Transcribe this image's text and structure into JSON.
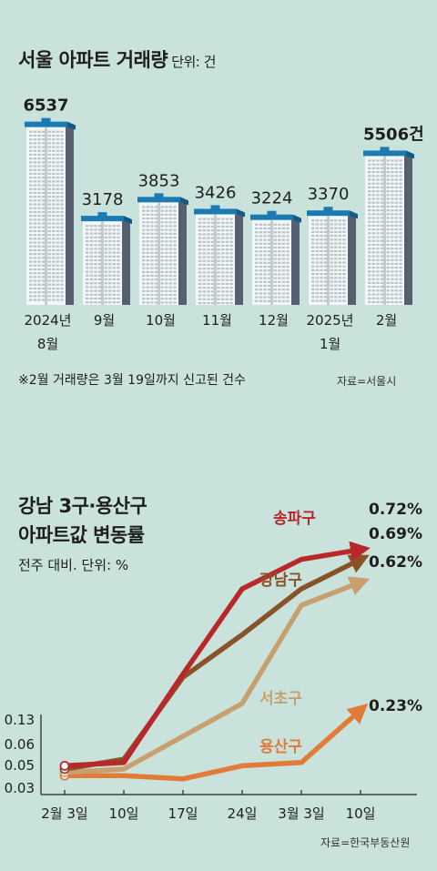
{
  "chart_data": [
    {
      "type": "bar",
      "title": "서울 아파트 거래량",
      "unit_label": "단위: 건",
      "categories": [
        {
          "line1": "2024년",
          "line2": "8월"
        },
        {
          "line1": "9월",
          "line2": ""
        },
        {
          "line1": "10월",
          "line2": ""
        },
        {
          "line1": "11월",
          "line2": ""
        },
        {
          "line1": "12월",
          "line2": ""
        },
        {
          "line1": "2025년",
          "line2": "1월"
        },
        {
          "line1": "2월",
          "line2": ""
        }
      ],
      "values": [
        6537,
        3178,
        3853,
        3426,
        3224,
        3370,
        5506
      ],
      "value_labels": [
        "6537",
        "3178",
        "3853",
        "3426",
        "3224",
        "3370",
        "5506건"
      ],
      "bold_labels": [
        true,
        false,
        false,
        false,
        false,
        false,
        true
      ],
      "note": "※2월 거래량은 3월 19일까지 신고된 건수",
      "source": "자료=서울시"
    },
    {
      "type": "line",
      "title_line1": "강남 3구·용산구",
      "title_line2": "아파트값 변동률",
      "subtitle": "전주 대비. 단위: %",
      "x": [
        "2월 3일",
        "10일",
        "17일",
        "24일",
        "3월 3일",
        "10일"
      ],
      "series": [
        {
          "name": "송파구",
          "color": "#b8282a",
          "values": [
            0.06,
            0.07,
            0.34,
            0.6,
            0.69,
            0.72
          ],
          "end_label": "0.72%"
        },
        {
          "name": "강남구",
          "color": "#8a5228",
          "values": [
            0.05,
            0.08,
            0.33,
            0.46,
            0.6,
            0.69
          ],
          "end_label": "0.69%"
        },
        {
          "name": "서초구",
          "color": "#c8a070",
          "values": [
            0.04,
            0.05,
            0.15,
            0.25,
            0.55,
            0.62
          ],
          "end_label": "0.62%"
        },
        {
          "name": "용산구",
          "color": "#e27a38",
          "values": [
            0.03,
            0.03,
            0.02,
            0.06,
            0.07,
            0.23
          ],
          "end_label": "0.23%"
        }
      ],
      "start_labels": [
        "0.13",
        "0.06",
        "0.05",
        "0.03"
      ],
      "source": "자료=한국부동산원"
    }
  ]
}
